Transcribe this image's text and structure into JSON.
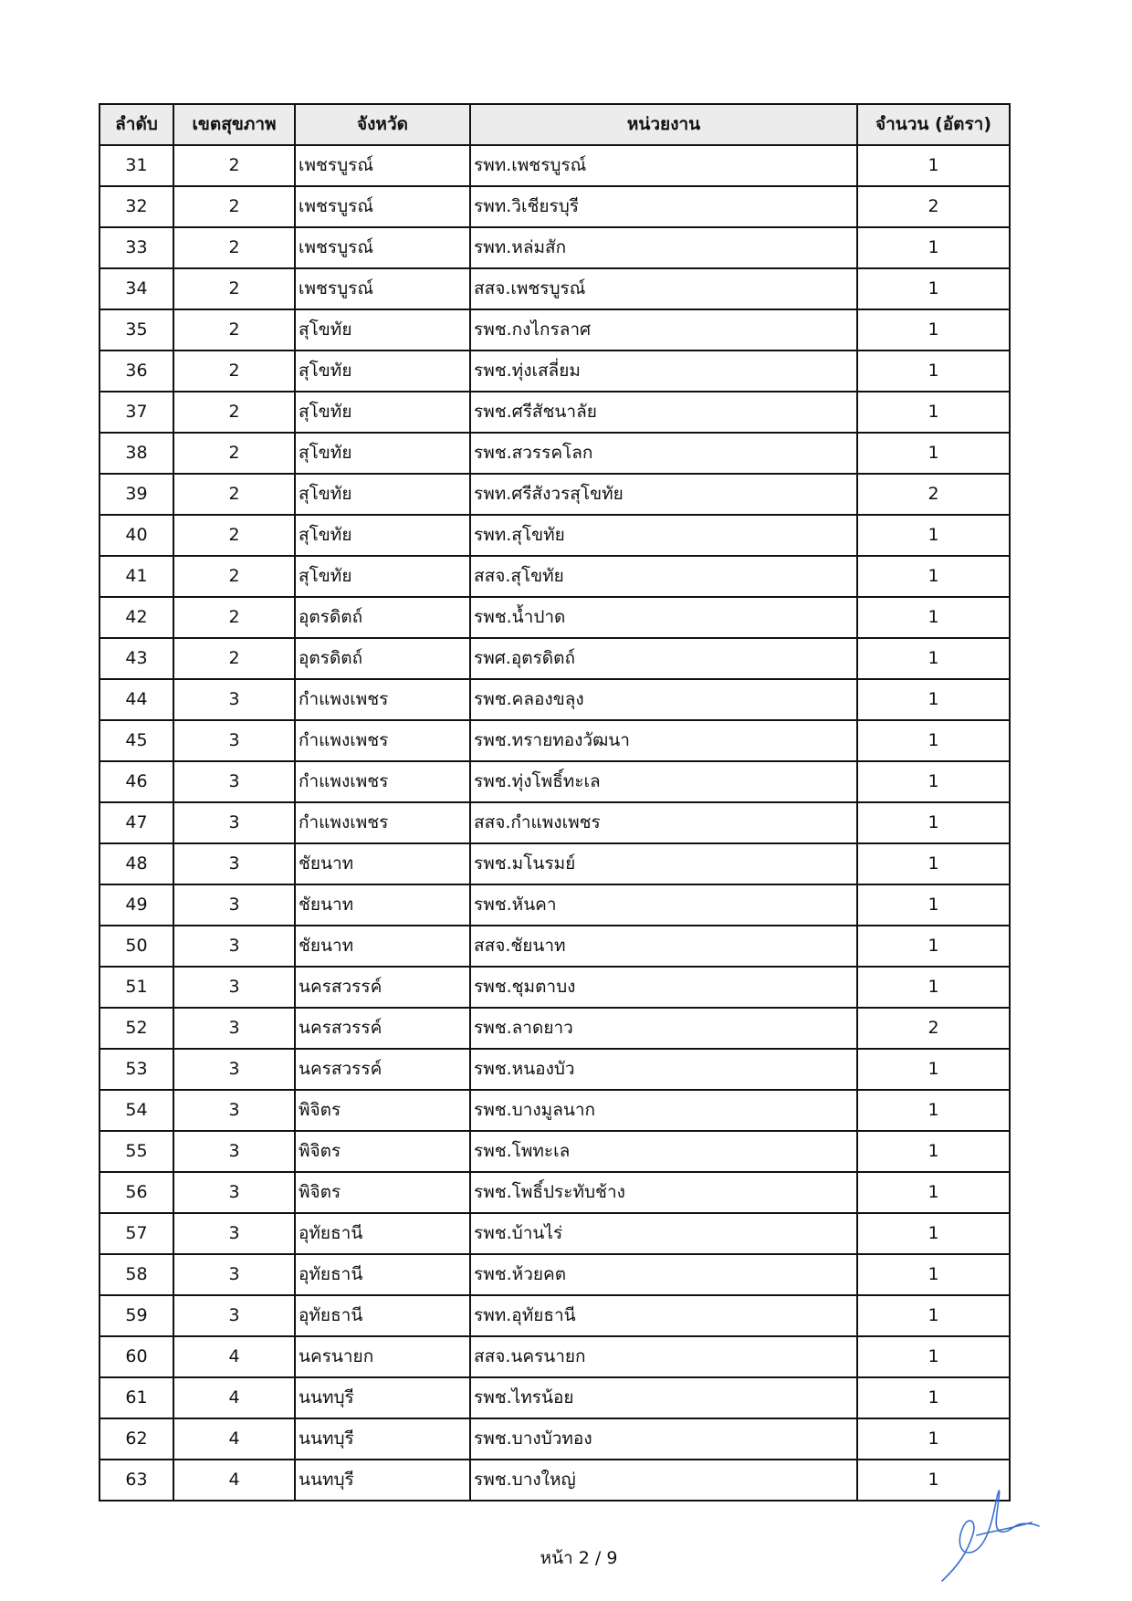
{
  "table": {
    "headers": [
      "ลำดับ",
      "เขตสุขภาพ",
      "จังหวัด",
      "หน่วยงาน",
      "จำนวน (อัตรา)"
    ],
    "rows": [
      [
        "31",
        "2",
        "เพชรบูรณ์",
        "รพท.เพชรบูรณ์",
        "1"
      ],
      [
        "32",
        "2",
        "เพชรบูรณ์",
        "รพท.วิเชียรบุรี",
        "2"
      ],
      [
        "33",
        "2",
        "เพชรบูรณ์",
        "รพท.หล่มสัก",
        "1"
      ],
      [
        "34",
        "2",
        "เพชรบูรณ์",
        "สสจ.เพชรบูรณ์",
        "1"
      ],
      [
        "35",
        "2",
        "สุโขทัย",
        "รพช.กงไกรลาศ",
        "1"
      ],
      [
        "36",
        "2",
        "สุโขทัย",
        "รพช.ทุ่งเสลี่ยม",
        "1"
      ],
      [
        "37",
        "2",
        "สุโขทัย",
        "รพช.ศรีสัชนาลัย",
        "1"
      ],
      [
        "38",
        "2",
        "สุโขทัย",
        "รพช.สวรรคโลก",
        "1"
      ],
      [
        "39",
        "2",
        "สุโขทัย",
        "รพท.ศรีสังวรสุโขทัย",
        "2"
      ],
      [
        "40",
        "2",
        "สุโขทัย",
        "รพท.สุโขทัย",
        "1"
      ],
      [
        "41",
        "2",
        "สุโขทัย",
        "สสจ.สุโขทัย",
        "1"
      ],
      [
        "42",
        "2",
        "อุตรดิตถ์",
        "รพช.น้ำปาด",
        "1"
      ],
      [
        "43",
        "2",
        "อุตรดิตถ์",
        "รพศ.อุตรดิตถ์",
        "1"
      ],
      [
        "44",
        "3",
        "กำแพงเพชร",
        "รพช.คลองขลุง",
        "1"
      ],
      [
        "45",
        "3",
        "กำแพงเพชร",
        "รพช.ทรายทองวัฒนา",
        "1"
      ],
      [
        "46",
        "3",
        "กำแพงเพชร",
        "รพช.ทุ่งโพธิ์ทะเล",
        "1"
      ],
      [
        "47",
        "3",
        "กำแพงเพชร",
        "สสจ.กำแพงเพชร",
        "1"
      ],
      [
        "48",
        "3",
        "ชัยนาท",
        "รพช.มโนรมย์",
        "1"
      ],
      [
        "49",
        "3",
        "ชัยนาท",
        "รพช.หันคา",
        "1"
      ],
      [
        "50",
        "3",
        "ชัยนาท",
        "สสจ.ชัยนาท",
        "1"
      ],
      [
        "51",
        "3",
        "นครสวรรค์",
        "รพช.ชุมตาบง",
        "1"
      ],
      [
        "52",
        "3",
        "นครสวรรค์",
        "รพช.ลาดยาว",
        "2"
      ],
      [
        "53",
        "3",
        "นครสวรรค์",
        "รพช.หนองบัว",
        "1"
      ],
      [
        "54",
        "3",
        "พิจิตร",
        "รพช.บางมูลนาก",
        "1"
      ],
      [
        "55",
        "3",
        "พิจิตร",
        "รพช.โพทะเล",
        "1"
      ],
      [
        "56",
        "3",
        "พิจิตร",
        "รพช.โพธิ์ประทับช้าง",
        "1"
      ],
      [
        "57",
        "3",
        "อุทัยธานี",
        "รพช.บ้านไร่",
        "1"
      ],
      [
        "58",
        "3",
        "อุทัยธานี",
        "รพช.ห้วยคต",
        "1"
      ],
      [
        "59",
        "3",
        "อุทัยธานี",
        "รพท.อุทัยธานี",
        "1"
      ],
      [
        "60",
        "4",
        "นครนายก",
        "สสจ.นครนายก",
        "1"
      ],
      [
        "61",
        "4",
        "นนทบุรี",
        "รพช.ไทรน้อย",
        "1"
      ],
      [
        "62",
        "4",
        "นนทบุรี",
        "รพช.บางบัวทอง",
        "1"
      ],
      [
        "63",
        "4",
        "นนทบุรี",
        "รพช.บางใหญ่",
        "1"
      ]
    ]
  },
  "footer": {
    "page_label": "หน้า 2 / 9"
  },
  "signature": {
    "color": "#3a6fd0"
  }
}
